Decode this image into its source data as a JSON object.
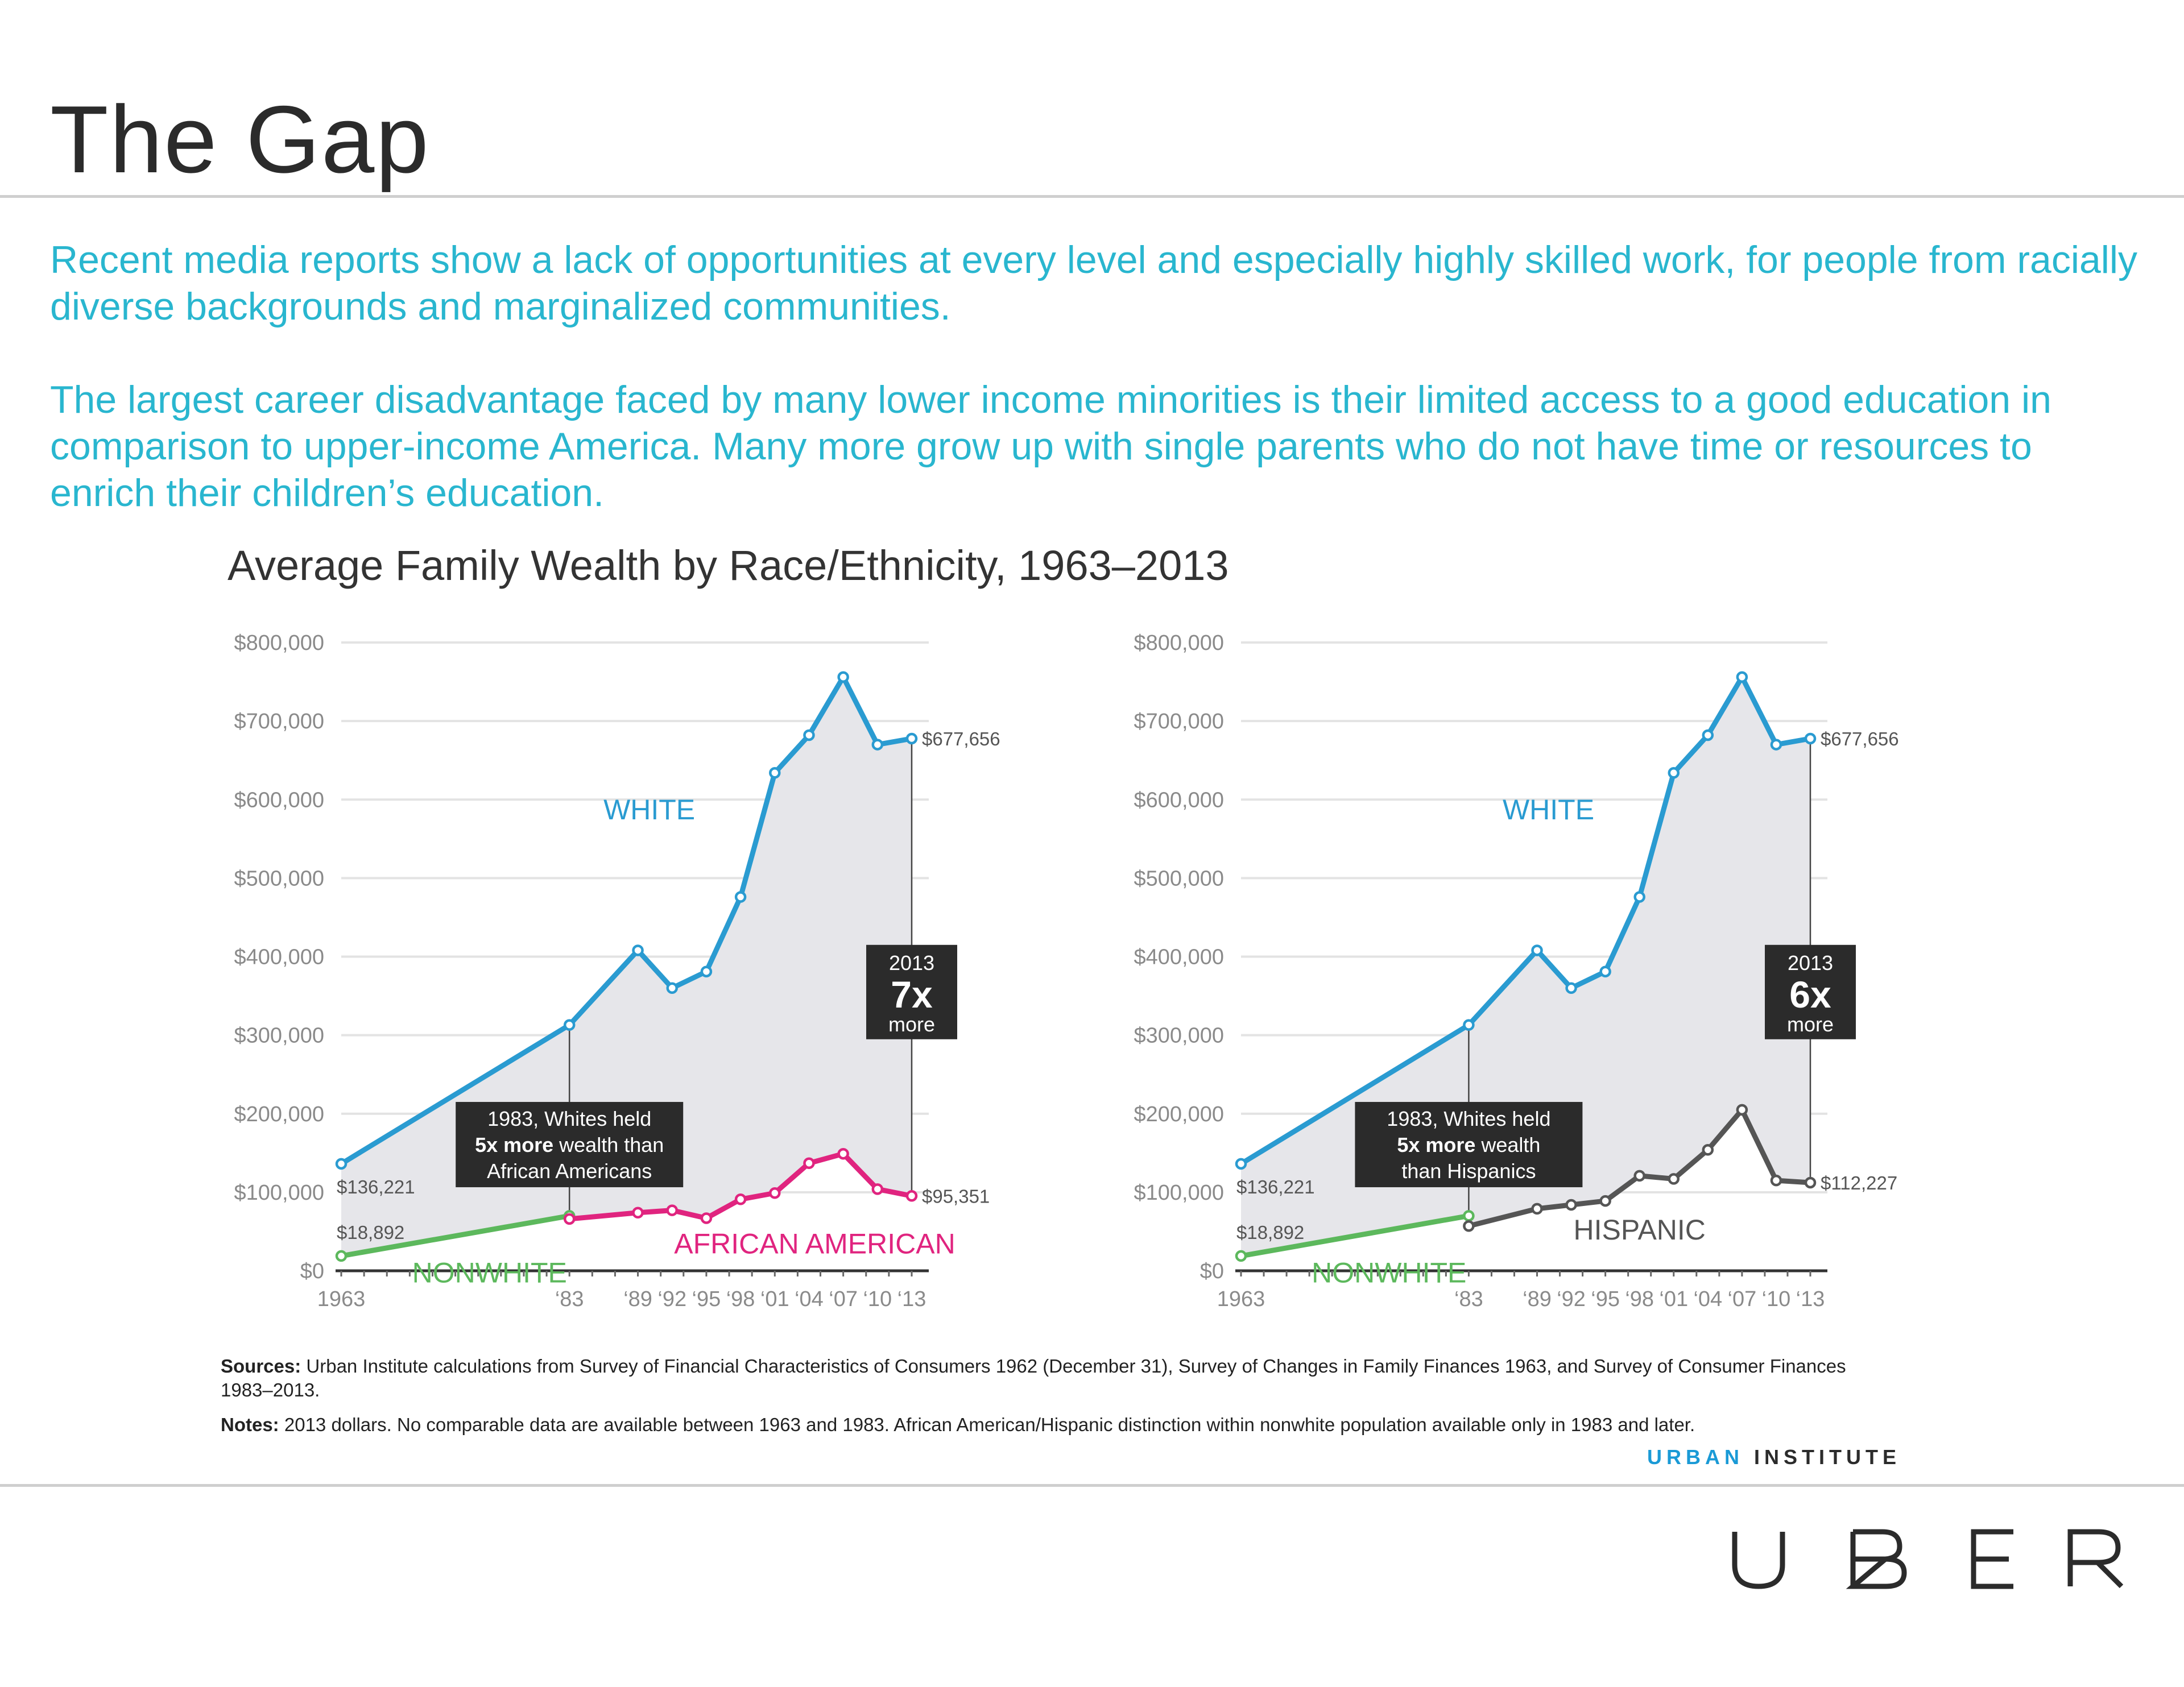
{
  "page": {
    "title": "The Gap",
    "intro_1": "Recent media reports show a lack of opportunities at every level and especially highly skilled work, for people from racially diverse backgrounds and marginalized communities.",
    "intro_2": "The largest career disadvantage faced by many lower income minorities is their limited access to a good education in comparison to upper-income America. Many more grow up with single parents who do not have time or resources to enrich their children’s education.",
    "chart_title": "Average Family Wealth by Race/Ethnicity, 1963–2013",
    "sources_label": "Sources:",
    "sources_text": "Urban Institute calculations from Survey of Financial Characteristics of Consumers 1962 (December 31), Survey of Changes in Family Finances 1963, and Survey of Consumer Finances 1983–2013.",
    "notes_label": "Notes:",
    "notes_text": "2013 dollars. No comparable data are available between 1963 and 1983. African American/Hispanic distinction within nonwhite population available only in 1983 and later.",
    "attribution_1": "URBAN",
    "attribution_2": "INSTITUTE",
    "brand": "UBER"
  },
  "colors": {
    "intro": "#29b6cf",
    "white_series": "#2a9bd1",
    "african_american": "#e0247f",
    "hispanic": "#555555",
    "nonwhite": "#5cb85c",
    "gap_fill": "#e6e6ea",
    "annotation_box": "#2b2b2b"
  },
  "chart_data": [
    {
      "type": "line",
      "title": "Average Family Wealth by Race/Ethnicity, 1963–2013",
      "ylim": [
        0,
        800000
      ],
      "yticks": [
        "$0",
        "$100,000",
        "$200,000",
        "$300,000",
        "$400,000",
        "$500,000",
        "$600,000",
        "$700,000",
        "$800,000"
      ],
      "xticks": [
        {
          "year": 1963,
          "label": "1963"
        },
        {
          "year": 1983,
          "label": "‘83"
        },
        {
          "year": 1989,
          "label": "‘89"
        },
        {
          "year": 1992,
          "label": "‘92"
        },
        {
          "year": 1995,
          "label": "‘95"
        },
        {
          "year": 1998,
          "label": "‘98"
        },
        {
          "year": 2001,
          "label": "‘01"
        },
        {
          "year": 2004,
          "label": "‘04"
        },
        {
          "year": 2007,
          "label": "‘07"
        },
        {
          "year": 2010,
          "label": "‘10"
        },
        {
          "year": 2013,
          "label": "‘13"
        }
      ],
      "grid": true,
      "series": [
        {
          "name": "WHITE",
          "color": "#2a9bd1",
          "x": [
            1963,
            1983,
            1989,
            1992,
            1995,
            1998,
            2001,
            2004,
            2007,
            2010,
            2013
          ],
          "y": [
            136221,
            313000,
            408000,
            360000,
            381000,
            476000,
            634000,
            682000,
            756000,
            670000,
            677656
          ]
        },
        {
          "name": "NONWHITE",
          "color": "#5cb85c",
          "x": [
            1963,
            1983
          ],
          "y": [
            18892,
            70000
          ]
        },
        {
          "name": "AFRICAN AMERICAN",
          "color": "#e0247f",
          "x": [
            1983,
            1989,
            1992,
            1995,
            1998,
            2001,
            2004,
            2007,
            2010,
            2013
          ],
          "y": [
            66000,
            74000,
            77000,
            67000,
            91000,
            99000,
            137000,
            149000,
            104000,
            95351
          ]
        }
      ],
      "value_labels": {
        "white_start": "$136,221",
        "white_end": "$677,656",
        "nonwhite_start": "$18,892",
        "minority_end": "$95,351"
      },
      "annotations": {
        "box_1983": [
          "1983, Whites held",
          "5x more wealth than",
          "African Americans"
        ],
        "box_1983_bold": "5x more",
        "box_2013_year": "2013",
        "box_2013_mult": "7x",
        "box_2013_more": "more"
      }
    },
    {
      "type": "line",
      "title": "Average Family Wealth by Race/Ethnicity, 1963–2013",
      "ylim": [
        0,
        800000
      ],
      "yticks": [
        "$0",
        "$100,000",
        "$200,000",
        "$300,000",
        "$400,000",
        "$500,000",
        "$600,000",
        "$700,000",
        "$800,000"
      ],
      "xticks": [
        {
          "year": 1963,
          "label": "1963"
        },
        {
          "year": 1983,
          "label": "‘83"
        },
        {
          "year": 1989,
          "label": "‘89"
        },
        {
          "year": 1992,
          "label": "‘92"
        },
        {
          "year": 1995,
          "label": "‘95"
        },
        {
          "year": 1998,
          "label": "‘98"
        },
        {
          "year": 2001,
          "label": "‘01"
        },
        {
          "year": 2004,
          "label": "‘04"
        },
        {
          "year": 2007,
          "label": "‘07"
        },
        {
          "year": 2010,
          "label": "‘10"
        },
        {
          "year": 2013,
          "label": "‘13"
        }
      ],
      "grid": true,
      "series": [
        {
          "name": "WHITE",
          "color": "#2a9bd1",
          "x": [
            1963,
            1983,
            1989,
            1992,
            1995,
            1998,
            2001,
            2004,
            2007,
            2010,
            2013
          ],
          "y": [
            136221,
            313000,
            408000,
            360000,
            381000,
            476000,
            634000,
            682000,
            756000,
            670000,
            677656
          ]
        },
        {
          "name": "NONWHITE",
          "color": "#5cb85c",
          "x": [
            1963,
            1983
          ],
          "y": [
            18892,
            70000
          ]
        },
        {
          "name": "HISPANIC",
          "color": "#555555",
          "x": [
            1983,
            1989,
            1992,
            1995,
            1998,
            2001,
            2004,
            2007,
            2010,
            2013
          ],
          "y": [
            57000,
            79000,
            84000,
            89000,
            121000,
            117000,
            154000,
            205000,
            115000,
            112227
          ]
        }
      ],
      "value_labels": {
        "white_start": "$136,221",
        "white_end": "$677,656",
        "nonwhite_start": "$18,892",
        "minority_end": "$112,227"
      },
      "annotations": {
        "box_1983": [
          "1983, Whites held",
          "5x more wealth",
          "than Hispanics"
        ],
        "box_1983_bold": "5x more",
        "box_2013_year": "2013",
        "box_2013_mult": "6x",
        "box_2013_more": "more"
      }
    }
  ]
}
